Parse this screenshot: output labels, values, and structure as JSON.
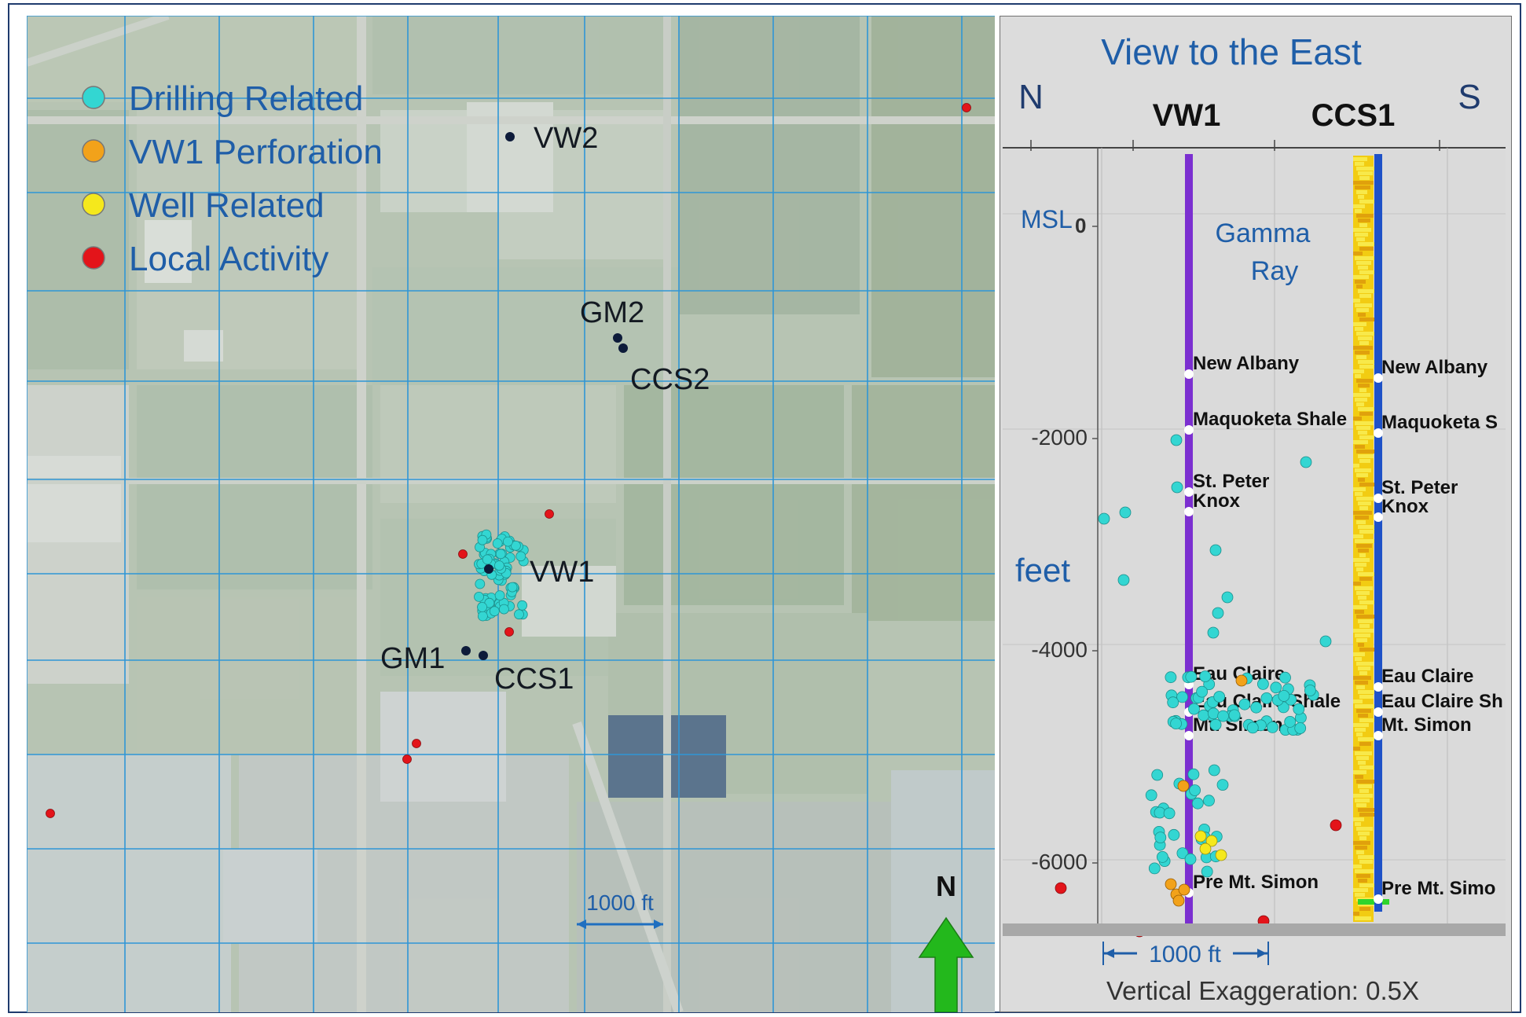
{
  "map": {
    "legend": [
      {
        "label": "Drilling Related",
        "color": "#33d6d2"
      },
      {
        "label": "VW1 Perforation",
        "color": "#f2a21a"
      },
      {
        "label": "Well Related",
        "color": "#f5e81c"
      },
      {
        "label": "Local Activity",
        "color": "#e3141a"
      }
    ],
    "wells": [
      {
        "name": "VW2"
      },
      {
        "name": "GM2"
      },
      {
        "name": "CCS2"
      },
      {
        "name": "VW1"
      },
      {
        "name": "GM1"
      },
      {
        "name": "CCS1"
      }
    ],
    "scale_label": "1000 ft",
    "north_label": "N",
    "colors": {
      "grid": "#2f96d6",
      "well": "#0d1b3a",
      "arrow": "#23b81c"
    }
  },
  "section": {
    "title": "View to the East",
    "left_direction": "N",
    "right_direction": "S",
    "well_headers": [
      "VW1",
      "CCS1"
    ],
    "msl_label": "MSL",
    "y_axis_label": "feet",
    "y_ticks": [
      "0",
      "-2000",
      "-4000",
      "-6000"
    ],
    "gamma_ray_label": [
      "Gamma",
      "Ray"
    ],
    "vw1_formations": [
      "New Albany",
      "Maquoketa Shale",
      "St. Peter",
      "Knox",
      "Eau Claire",
      "Eau Claire Shale",
      "Mt. Simon",
      "Pre Mt. Simon"
    ],
    "ccs1_formations": [
      "New Albany",
      "Maquoketa S",
      "St. Peter",
      "Knox",
      "Eau Claire",
      "Eau Claire Sh",
      "Mt. Simon",
      "Pre Mt. Simo"
    ],
    "scale_label": "1000 ft",
    "exaggeration_label": "Vertical Exaggeration: 0.5X",
    "colors": {
      "vw1_well": "#7b2fd0",
      "ccs1_well": "#1f52c7",
      "gamma_ray": "#f2cc12",
      "title": "#1f5ea8"
    }
  }
}
